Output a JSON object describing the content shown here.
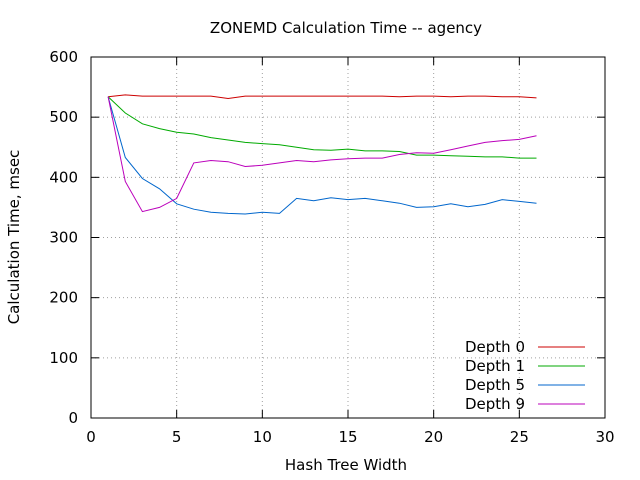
{
  "chart_data": {
    "type": "line",
    "title": "ZONEMD Calculation Time -- agency",
    "xlabel": "Hash Tree Width",
    "ylabel": "Calculation Time, msec",
    "xlim": [
      0,
      30
    ],
    "ylim": [
      0,
      600
    ],
    "xticks": [
      0,
      5,
      10,
      15,
      20,
      25,
      30
    ],
    "yticks": [
      0,
      100,
      200,
      300,
      400,
      500,
      600
    ],
    "grid": true,
    "legend_position": "bottom-right",
    "x": [
      1,
      2,
      3,
      4,
      5,
      6,
      7,
      8,
      9,
      10,
      11,
      12,
      13,
      14,
      15,
      16,
      17,
      18,
      19,
      20,
      21,
      22,
      23,
      24,
      25,
      26
    ],
    "series": [
      {
        "name": "Depth 0",
        "color": "#cc0000",
        "values": [
          534,
          537,
          535,
          535,
          535,
          535,
          535,
          531,
          535,
          535,
          535,
          535,
          535,
          535,
          535,
          535,
          535,
          534,
          535,
          535,
          534,
          535,
          535,
          534,
          534,
          532
        ]
      },
      {
        "name": "Depth 1",
        "color": "#00aa00",
        "values": [
          534,
          507,
          489,
          481,
          475,
          472,
          466,
          462,
          458,
          456,
          454,
          450,
          446,
          445,
          447,
          444,
          444,
          443,
          437,
          437,
          436,
          435,
          434,
          434,
          432,
          432
        ]
      },
      {
        "name": "Depth 5",
        "color": "#0066cc",
        "values": [
          534,
          433,
          398,
          381,
          356,
          347,
          342,
          340,
          339,
          342,
          340,
          365,
          361,
          366,
          363,
          365,
          361,
          357,
          350,
          351,
          356,
          351,
          355,
          363,
          360,
          357
        ]
      },
      {
        "name": "Depth 9",
        "color": "#bb00bb",
        "values": [
          534,
          393,
          343,
          350,
          365,
          424,
          428,
          426,
          418,
          420,
          424,
          428,
          426,
          429,
          431,
          432,
          432,
          438,
          441,
          440,
          446,
          452,
          458,
          461,
          463,
          469
        ]
      }
    ]
  }
}
